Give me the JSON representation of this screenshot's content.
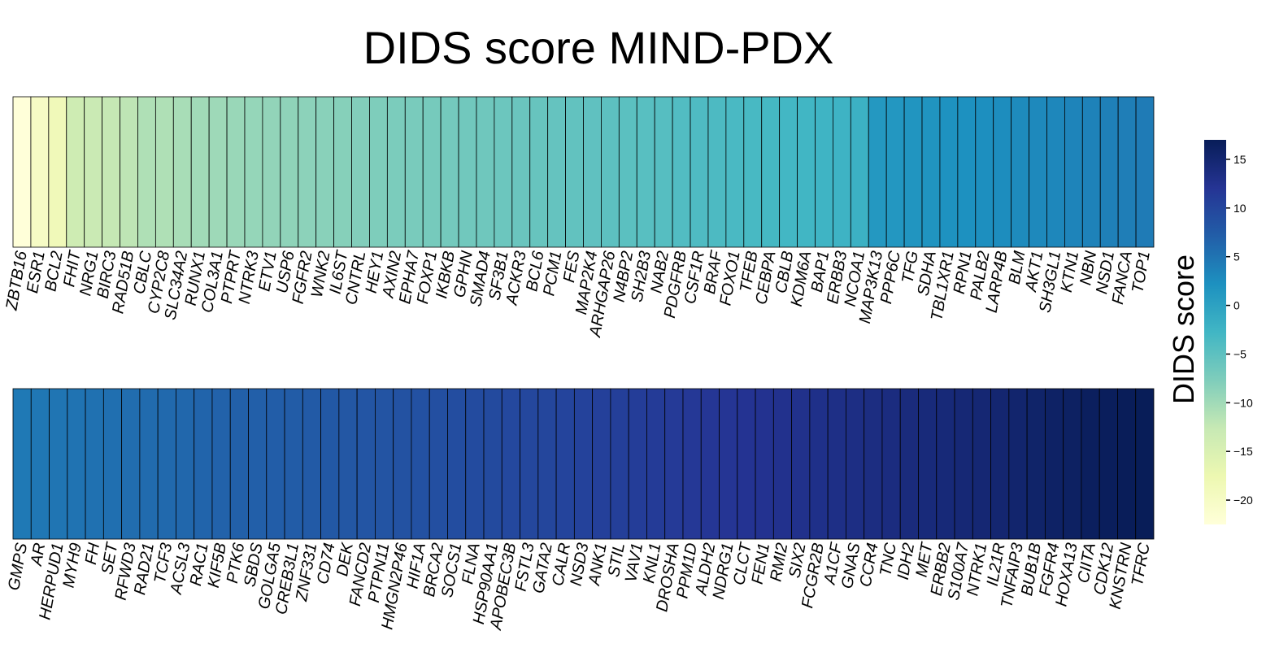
{
  "chart_data": {
    "type": "heatmap",
    "title": "DIDS score MIND-PDX",
    "colorbar": {
      "label": "DIDS score",
      "range": [
        -22.5,
        17
      ],
      "ticks": [
        15,
        10,
        5,
        0,
        -5,
        -10,
        -15,
        -20
      ],
      "tick_labels": [
        "15",
        "10",
        "5",
        "0",
        "−5",
        "−10",
        "−15",
        "−20"
      ],
      "colormap": "YlGnBu"
    },
    "rows": [
      {
        "genes": [
          "ZBTB16",
          "ESR1",
          "BCL2",
          "FHIT",
          "NRG1",
          "BIRC3",
          "RAD51B",
          "CBLC",
          "CYP2C8",
          "SLC34A2",
          "RUNX1",
          "COL3A1",
          "PTPRT",
          "NTRK3",
          "ETV1",
          "USP6",
          "FGFR2",
          "WNK2",
          "IL6ST",
          "CNTRL",
          "HEY1",
          "AXIN2",
          "EPHA7",
          "FOXP1",
          "IKBKB",
          "GPHN",
          "SMAD4",
          "SF3B1",
          "ACKR3",
          "BCL6",
          "PCM1",
          "FES",
          "MAP2K4",
          "ARHGAP26",
          "N4BP2",
          "SH2B3",
          "NAB2",
          "PDGFRB",
          "CSF1R",
          "BRAF",
          "FOXO1",
          "TFEB",
          "CEBPA",
          "CBLB",
          "KDM6A",
          "BAP1",
          "ERBB3",
          "NCOA1",
          "MAP3K13",
          "PPP6C",
          "TFG",
          "SDHA",
          "TBL1XR1",
          "RPN1",
          "PALB2",
          "LARP4B",
          "BLM",
          "AKT1",
          "SH3GL1",
          "KTN1",
          "NBN",
          "NSD1",
          "FANCA",
          "TOP1"
        ],
        "values": [
          -22.5,
          -20.0,
          -18.5,
          -13.5,
          -13.0,
          -12.5,
          -12.0,
          -11.0,
          -11.0,
          -10.5,
          -10.0,
          -9.8,
          -9.5,
          -9.2,
          -9.0,
          -8.8,
          -8.6,
          -8.4,
          -8.2,
          -7.9,
          -7.6,
          -7.4,
          -7.2,
          -7.0,
          -6.8,
          -6.6,
          -6.4,
          -6.2,
          -6.0,
          -5.8,
          -5.6,
          -5.4,
          -5.2,
          -5.0,
          -4.8,
          -4.6,
          -4.4,
          -4.1,
          -3.9,
          -3.7,
          -3.5,
          -3.3,
          -3.1,
          -2.9,
          -2.7,
          -2.5,
          -2.3,
          -2.1,
          1.2,
          1.4,
          1.6,
          1.8,
          2.0,
          2.2,
          2.4,
          2.6,
          2.8,
          3.0,
          3.2,
          3.4,
          3.6,
          3.8,
          4.0,
          4.3
        ]
      },
      {
        "genes": [
          "GMPS",
          "AR",
          "HERPUD1",
          "MYH9",
          "FH",
          "SET",
          "RFWD3",
          "RAD21",
          "TCF3",
          "ACSL3",
          "RAC1",
          "KIF5B",
          "PTK6",
          "SBDS",
          "GOLGA5",
          "CREB3L1",
          "ZNF331",
          "CD74",
          "DEK",
          "FANCD2",
          "PTPN11",
          "HMGN2P46",
          "HIF1A",
          "BRCA2",
          "SOCS1",
          "FLNA",
          "HSP90AA1",
          "APOBEC3B",
          "FSTL3",
          "GATA2",
          "CALR",
          "NSD3",
          "ANK1",
          "STIL",
          "VAV1",
          "KNL1",
          "DROSHA",
          "PPM1D",
          "ALDH2",
          "NDRG1",
          "CLCT",
          "FEN1",
          "RMI2",
          "SIX2",
          "FCGR2B",
          "A1CF",
          "GNAS",
          "CCR4",
          "TNC",
          "IDH2",
          "MET",
          "ERBB2",
          "S100A7",
          "NTRK1",
          "IL21R",
          "TNFAIP3",
          "BUB1B",
          "FGFR4",
          "HOXA13",
          "CIITA",
          "CDK12",
          "KNSTRN",
          "TFRC"
        ],
        "values": [
          4.5,
          4.7,
          4.9,
          5.1,
          5.3,
          5.5,
          5.7,
          5.9,
          6.1,
          6.3,
          6.5,
          6.7,
          6.9,
          7.0,
          7.2,
          7.4,
          7.6,
          7.8,
          8.0,
          8.2,
          8.3,
          8.5,
          8.7,
          8.9,
          9.1,
          9.3,
          9.5,
          9.7,
          9.8,
          10.0,
          10.2,
          10.4,
          10.6,
          10.8,
          11.0,
          11.2,
          11.4,
          11.6,
          11.8,
          12.0,
          12.2,
          12.4,
          12.6,
          12.8,
          13.0,
          13.2,
          13.4,
          13.6,
          13.8,
          14.0,
          14.2,
          14.4,
          14.6,
          14.8,
          15.0,
          15.3,
          15.6,
          15.9,
          16.2,
          16.5,
          16.7,
          16.9,
          17.0
        ]
      }
    ]
  }
}
